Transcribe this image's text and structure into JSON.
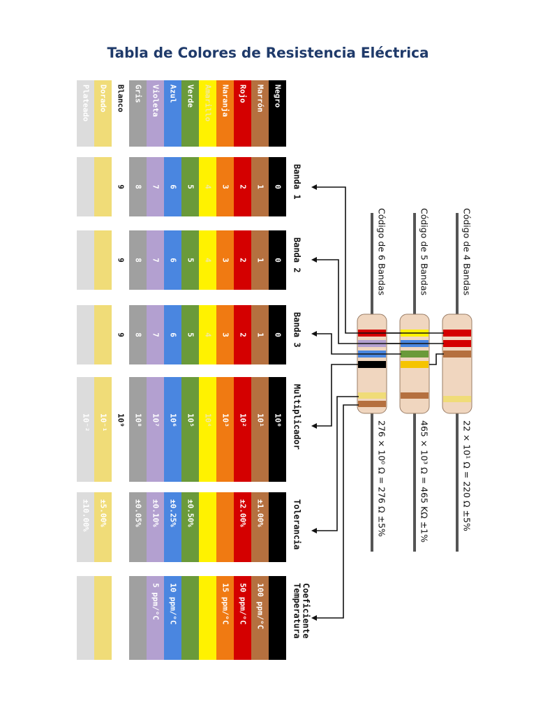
{
  "title": "Tabla de Colores de Resistencia Eléctrica",
  "headers": [
    {
      "lines": [
        "Banda 1"
      ]
    },
    {
      "lines": [
        "Banda 2"
      ]
    },
    {
      "lines": [
        "Banda 3"
      ]
    },
    {
      "lines": [
        "Multiplicador"
      ]
    },
    {
      "lines": [
        "Tolerancia"
      ]
    },
    {
      "lines": [
        "Coeficiente",
        "Temperatura"
      ]
    }
  ],
  "rows": [
    {
      "name": "Negro",
      "color": "#000000",
      "text_color": "#ffffff",
      "band1": "0",
      "band2": "0",
      "band3": "0",
      "multiplier": "10⁰"
    },
    {
      "name": "Marrón",
      "color": "#b5703f",
      "text_color": "#ffffff",
      "band1": "1",
      "band2": "1",
      "band3": "1",
      "multiplier": "10¹",
      "tolerance": "±1.00%",
      "tempco": "100 ppm/°C"
    },
    {
      "name": "Rojo",
      "color": "#d40000",
      "text_color": "#ffffff",
      "band1": "2",
      "band2": "2",
      "band3": "2",
      "multiplier": "10²",
      "tolerance": "±2.00%",
      "tempco": "50 ppm/°C"
    },
    {
      "name": "Naranja",
      "color": "#f07a12",
      "text_color": "#ffffff",
      "band1": "3",
      "band2": "3",
      "band3": "3",
      "multiplier": "10³",
      "tempco": "15 ppm/°C"
    },
    {
      "name": "Amarillo",
      "color": "#fff200",
      "text_color": "#f2e8a0",
      "band1": "4",
      "band2": "4",
      "band3": "4",
      "multiplier": "10⁴"
    },
    {
      "name": "Verde",
      "color": "#6a9a3a",
      "text_color": "#ffffff",
      "band1": "5",
      "band2": "5",
      "band3": "5",
      "multiplier": "10⁵",
      "tolerance": "±0.50%"
    },
    {
      "name": "Azul",
      "color": "#4a86e0",
      "text_color": "#ffffff",
      "band1": "6",
      "band2": "6",
      "band3": "6",
      "multiplier": "10⁶",
      "tolerance": "±0.25%",
      "tempco": "10 ppm/°C"
    },
    {
      "name": "Violeta",
      "color": "#b3a0d0",
      "text_color": "#ffffff",
      "band1": "7",
      "band2": "7",
      "band3": "7",
      "multiplier": "10⁷",
      "tolerance": "±0.10%",
      "tempco": "5 ppm/°C"
    },
    {
      "name": "Gris",
      "color": "#a0a0a0",
      "text_color": "#ffffff",
      "band1": "8",
      "band2": "8",
      "band3": "8",
      "multiplier": "10⁸",
      "tolerance": "±0.05%"
    },
    {
      "name": "Blanco",
      "color": "#ffffff",
      "text_color": "#111111",
      "band1": "9",
      "band2": "9",
      "band3": "9",
      "multiplier": "10⁹"
    },
    {
      "name": "Dorado",
      "color": "#f0dc78",
      "text_color": "#ffffff",
      "multiplier": "10⁻¹",
      "tolerance": "±5.00%"
    },
    {
      "name": "Plateado",
      "color": "#dcdcdc",
      "text_color": "#ffffff",
      "multiplier": "10⁻²",
      "tolerance": "±10.00%"
    }
  ],
  "resistors": [
    {
      "label": "Código de 4 Bandas",
      "formula": "22 × 10¹ Ω = 220 Ω  ±5%",
      "bands": [
        "#d40000",
        "#d40000",
        "#b5703f",
        "#f0dc78"
      ]
    },
    {
      "label": "Código de 5 Bandas",
      "formula": "465 × 10³ Ω = 465 KΩ  ±1%",
      "bands": [
        "#fff200",
        "#4a86e0",
        "#6a9a3a",
        "#f5c400",
        "#b5703f"
      ]
    },
    {
      "label": "Código de 6 Bandas",
      "formula": "276 × 10⁰ Ω = 276 Ω  ±5%",
      "bands": [
        "#d40000",
        "#b3a0d0",
        "#4a86e0",
        "#000000",
        "#f0dc78",
        "#b5703f"
      ]
    }
  ]
}
